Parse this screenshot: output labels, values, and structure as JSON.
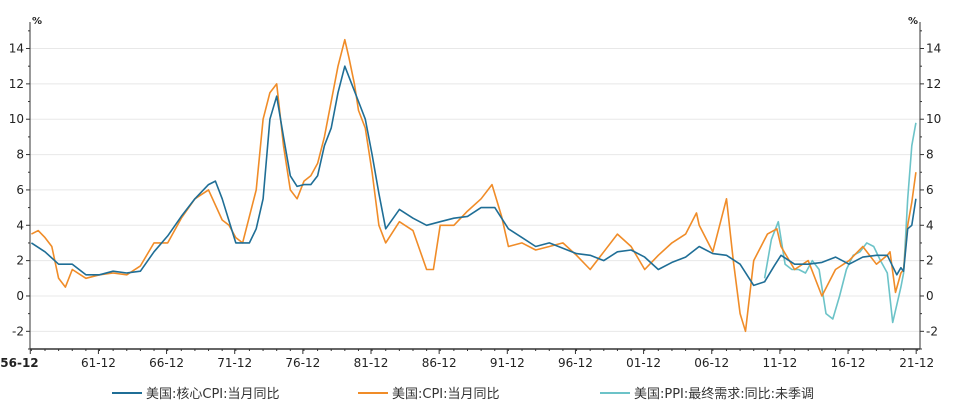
{
  "chart_data": {
    "type": "line",
    "y_unit_left": "%",
    "y_unit_right": "%",
    "ylim": [
      -3,
      15.5
    ],
    "y_ticks": [
      -2,
      0,
      2,
      4,
      6,
      8,
      10,
      12,
      14
    ],
    "y_tick_labels": [
      "-2",
      "0",
      "2",
      "4",
      "6",
      "8",
      "10",
      "12",
      "14"
    ],
    "xlim": [
      1956.9,
      2022.2
    ],
    "x_ticks": [
      1956.92,
      1961.92,
      1966.92,
      1971.92,
      1976.92,
      1981.92,
      1986.92,
      1991.92,
      1996.92,
      2001.92,
      2006.92,
      2011.92,
      2016.92,
      2021.92
    ],
    "x_tick_labels": [
      "56-12",
      "61-12",
      "66-12",
      "71-12",
      "76-12",
      "81-12",
      "86-12",
      "91-12",
      "96-12",
      "01-12",
      "06-12",
      "11-12",
      "16-12",
      "21-12"
    ],
    "grid": "horizontal",
    "legend_position": "bottom",
    "series": [
      {
        "name": "美国:核心CPI:当月同比",
        "color": "#1f6e96",
        "x": [
          1957.0,
          1958.0,
          1959.0,
          1960.0,
          1961.0,
          1962.0,
          1963.0,
          1964.0,
          1965.0,
          1966.0,
          1967.0,
          1968.0,
          1969.0,
          1970.0,
          1970.5,
          1971.0,
          1972.0,
          1972.5,
          1973.0,
          1973.5,
          1974.0,
          1974.5,
          1975.0,
          1975.5,
          1976.0,
          1976.5,
          1977.0,
          1977.5,
          1978.0,
          1978.5,
          1979.0,
          1979.5,
          1980.0,
          1980.5,
          1981.0,
          1981.5,
          1982.0,
          1982.5,
          1983.0,
          1984.0,
          1985.0,
          1986.0,
          1987.0,
          1988.0,
          1989.0,
          1990.0,
          1991.0,
          1992.0,
          1993.0,
          1994.0,
          1995.0,
          1996.0,
          1997.0,
          1998.0,
          1999.0,
          2000.0,
          2001.0,
          2002.0,
          2003.0,
          2004.0,
          2005.0,
          2006.0,
          2007.0,
          2008.0,
          2009.0,
          2010.0,
          2010.8,
          2011.5,
          2012.0,
          2013.0,
          2014.0,
          2015.0,
          2016.0,
          2017.0,
          2018.0,
          2019.0,
          2019.8,
          2020.5,
          2020.8,
          2021.0,
          2021.3,
          2021.6,
          2021.9
        ],
        "values": [
          3.0,
          2.5,
          1.8,
          1.8,
          1.2,
          1.2,
          1.4,
          1.3,
          1.4,
          2.5,
          3.4,
          4.5,
          5.5,
          6.3,
          6.5,
          5.5,
          3.0,
          3.0,
          3.0,
          3.8,
          5.5,
          10.0,
          11.3,
          9.0,
          6.8,
          6.2,
          6.3,
          6.3,
          6.8,
          8.5,
          9.5,
          11.5,
          13.0,
          12.0,
          11.0,
          10.0,
          8.0,
          5.8,
          3.8,
          4.9,
          4.4,
          4.0,
          4.2,
          4.4,
          4.5,
          5.0,
          5.0,
          3.8,
          3.3,
          2.8,
          3.0,
          2.7,
          2.4,
          2.3,
          2.0,
          2.5,
          2.6,
          2.2,
          1.5,
          1.9,
          2.2,
          2.8,
          2.4,
          2.3,
          1.8,
          0.6,
          0.8,
          1.7,
          2.3,
          1.8,
          1.8,
          1.9,
          2.2,
          1.8,
          2.2,
          2.3,
          2.3,
          1.2,
          1.6,
          1.4,
          3.8,
          4.0,
          5.5
        ]
      },
      {
        "name": "美国:CPI:当月同比",
        "color": "#f08c28",
        "x": [
          1957.0,
          1957.5,
          1958.0,
          1958.5,
          1959.0,
          1959.5,
          1960.0,
          1961.0,
          1962.0,
          1963.0,
          1964.0,
          1965.0,
          1966.0,
          1967.0,
          1968.0,
          1969.0,
          1970.0,
          1971.0,
          1971.5,
          1972.0,
          1972.5,
          1973.0,
          1973.5,
          1974.0,
          1974.5,
          1975.0,
          1975.5,
          1976.0,
          1976.5,
          1977.0,
          1977.5,
          1978.0,
          1978.5,
          1979.0,
          1979.5,
          1980.0,
          1980.3,
          1980.7,
          1981.0,
          1981.5,
          1982.0,
          1982.5,
          1983.0,
          1984.0,
          1985.0,
          1986.0,
          1986.5,
          1987.0,
          1988.0,
          1989.0,
          1990.0,
          1990.8,
          1991.5,
          1992.0,
          1993.0,
          1994.0,
          1995.0,
          1996.0,
          1997.0,
          1998.0,
          1999.0,
          2000.0,
          2001.0,
          2002.0,
          2003.0,
          2004.0,
          2005.0,
          2005.8,
          2006.0,
          2007.0,
          2008.0,
          2008.5,
          2009.0,
          2009.4,
          2010.0,
          2011.0,
          2011.7,
          2012.0,
          2013.0,
          2014.0,
          2015.0,
          2016.0,
          2017.0,
          2018.0,
          2019.0,
          2019.8,
          2020.0,
          2020.4,
          2020.8,
          2021.0,
          2021.3,
          2021.6,
          2021.9
        ],
        "values": [
          3.5,
          3.7,
          3.3,
          2.8,
          1.0,
          0.5,
          1.5,
          1.0,
          1.2,
          1.3,
          1.2,
          1.7,
          3.0,
          3.0,
          4.4,
          5.5,
          6.0,
          4.3,
          4.0,
          3.3,
          3.0,
          4.5,
          6.0,
          10.0,
          11.5,
          12.0,
          8.5,
          6.0,
          5.5,
          6.5,
          6.8,
          7.5,
          9.0,
          11.0,
          13.0,
          14.5,
          13.5,
          12.0,
          10.5,
          9.5,
          7.0,
          4.0,
          3.0,
          4.2,
          3.7,
          1.5,
          1.5,
          4.0,
          4.0,
          4.8,
          5.5,
          6.3,
          4.5,
          2.8,
          3.0,
          2.6,
          2.8,
          3.0,
          2.3,
          1.5,
          2.5,
          3.5,
          2.8,
          1.5,
          2.3,
          3.0,
          3.5,
          4.7,
          4.0,
          2.5,
          5.5,
          2.0,
          -1.0,
          -2.0,
          2.0,
          3.5,
          3.8,
          2.8,
          1.5,
          2.0,
          0.0,
          1.5,
          2.0,
          2.8,
          1.8,
          2.3,
          2.5,
          0.2,
          1.3,
          1.5,
          4.0,
          5.3,
          7.0
        ]
      },
      {
        "name": "美国:PPI:最终需求:同比:未季调",
        "color": "#6cc3c8",
        "x": [
          2010.8,
          2011.3,
          2011.8,
          2012.3,
          2012.8,
          2013.3,
          2013.8,
          2014.3,
          2014.8,
          2015.3,
          2015.8,
          2016.3,
          2016.8,
          2017.3,
          2017.8,
          2018.3,
          2018.8,
          2019.3,
          2019.8,
          2020.2,
          2020.5,
          2020.8,
          2021.0,
          2021.3,
          2021.6,
          2021.9
        ],
        "values": [
          1.0,
          3.2,
          4.2,
          1.8,
          1.5,
          1.5,
          1.3,
          2.0,
          1.5,
          -1.0,
          -1.3,
          0.0,
          1.5,
          2.3,
          2.5,
          3.0,
          2.8,
          2.0,
          1.3,
          -1.5,
          -0.5,
          0.5,
          1.3,
          5.5,
          8.5,
          9.8
        ]
      }
    ]
  }
}
